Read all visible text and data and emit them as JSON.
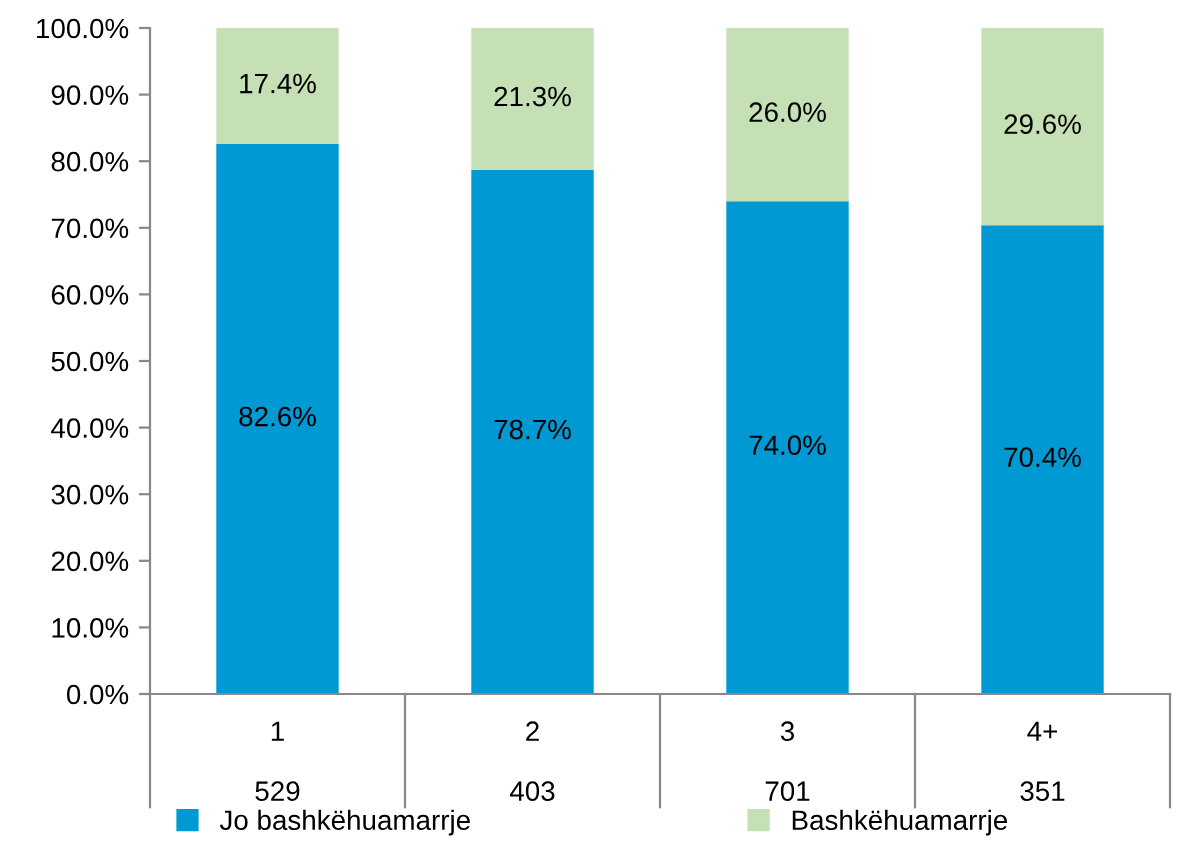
{
  "chart_data": {
    "type": "bar",
    "stacked": true,
    "categories": [
      "1\n529",
      "2\n403",
      "3\n701",
      "4+\n351"
    ],
    "series": [
      {
        "name": "Jo bashkëhuamarrje",
        "color": "#0099d4",
        "values": [
          82.6,
          78.7,
          74.0,
          70.4
        ],
        "value_labels": [
          "82.6%",
          "78.7%",
          "74.0%",
          "70.4%"
        ]
      },
      {
        "name": "Bashkëhuamarrje",
        "color": "#c5e0b4",
        "values": [
          17.4,
          21.3,
          26.0,
          29.6
        ],
        "value_labels": [
          "17.4%",
          "21.3%",
          "26.0%",
          "29.6%"
        ]
      }
    ],
    "ylim": [
      0,
      100
    ],
    "yticks": [
      {
        "value": 0,
        "label": "0.0%"
      },
      {
        "value": 10,
        "label": "10.0%"
      },
      {
        "value": 20,
        "label": "20.0%"
      },
      {
        "value": 30,
        "label": "30.0%"
      },
      {
        "value": 40,
        "label": "40.0%"
      },
      {
        "value": 50,
        "label": "50.0%"
      },
      {
        "value": 60,
        "label": "60.0%"
      },
      {
        "value": 70,
        "label": "70.0%"
      },
      {
        "value": 80,
        "label": "80.0%"
      },
      {
        "value": 90,
        "label": "90.0%"
      },
      {
        "value": 100,
        "label": "100.0%"
      }
    ],
    "grid": false,
    "legend": "bottom"
  }
}
